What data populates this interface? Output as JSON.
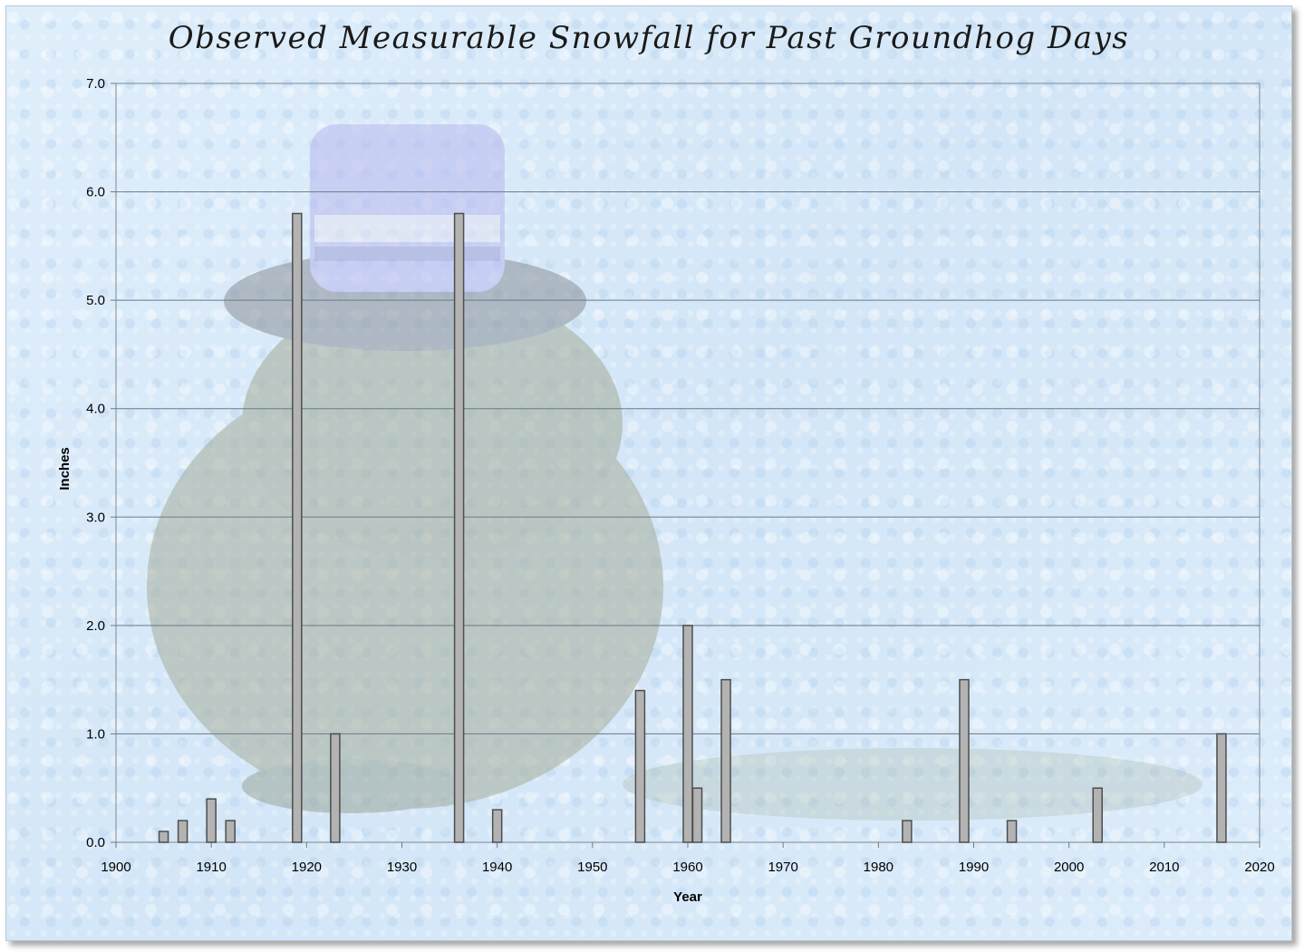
{
  "chart_data": {
    "type": "bar",
    "title": "Observed Measurable Snowfall for Past Groundhog Days",
    "xlabel": "Year",
    "ylabel": "Inches",
    "xlim": [
      1900,
      2020
    ],
    "ylim": [
      0,
      7
    ],
    "x_ticks": [
      "1900",
      "1910",
      "1920",
      "1930",
      "1940",
      "1950",
      "1960",
      "1970",
      "1980",
      "1990",
      "2000",
      "2010",
      "2020"
    ],
    "y_ticks": [
      "0.0",
      "1.0",
      "2.0",
      "3.0",
      "4.0",
      "5.0",
      "6.0",
      "7.0"
    ],
    "grid": "horizontal",
    "legend": "none",
    "bar_color": "#b3b3b3",
    "bar_edge_color": "#4d4d4d",
    "points": [
      {
        "x": 1905,
        "y": 0.1
      },
      {
        "x": 1907,
        "y": 0.2
      },
      {
        "x": 1910,
        "y": 0.4
      },
      {
        "x": 1912,
        "y": 0.2
      },
      {
        "x": 1919,
        "y": 5.8
      },
      {
        "x": 1923,
        "y": 1.0
      },
      {
        "x": 1936,
        "y": 5.8
      },
      {
        "x": 1940,
        "y": 0.3
      },
      {
        "x": 1955,
        "y": 1.4
      },
      {
        "x": 1960,
        "y": 2.0
      },
      {
        "x": 1961,
        "y": 0.5
      },
      {
        "x": 1964,
        "y": 1.5
      },
      {
        "x": 1983,
        "y": 0.2
      },
      {
        "x": 1989,
        "y": 1.5
      },
      {
        "x": 1994,
        "y": 0.2
      },
      {
        "x": 2003,
        "y": 0.5
      },
      {
        "x": 2016,
        "y": 1.0
      }
    ]
  }
}
